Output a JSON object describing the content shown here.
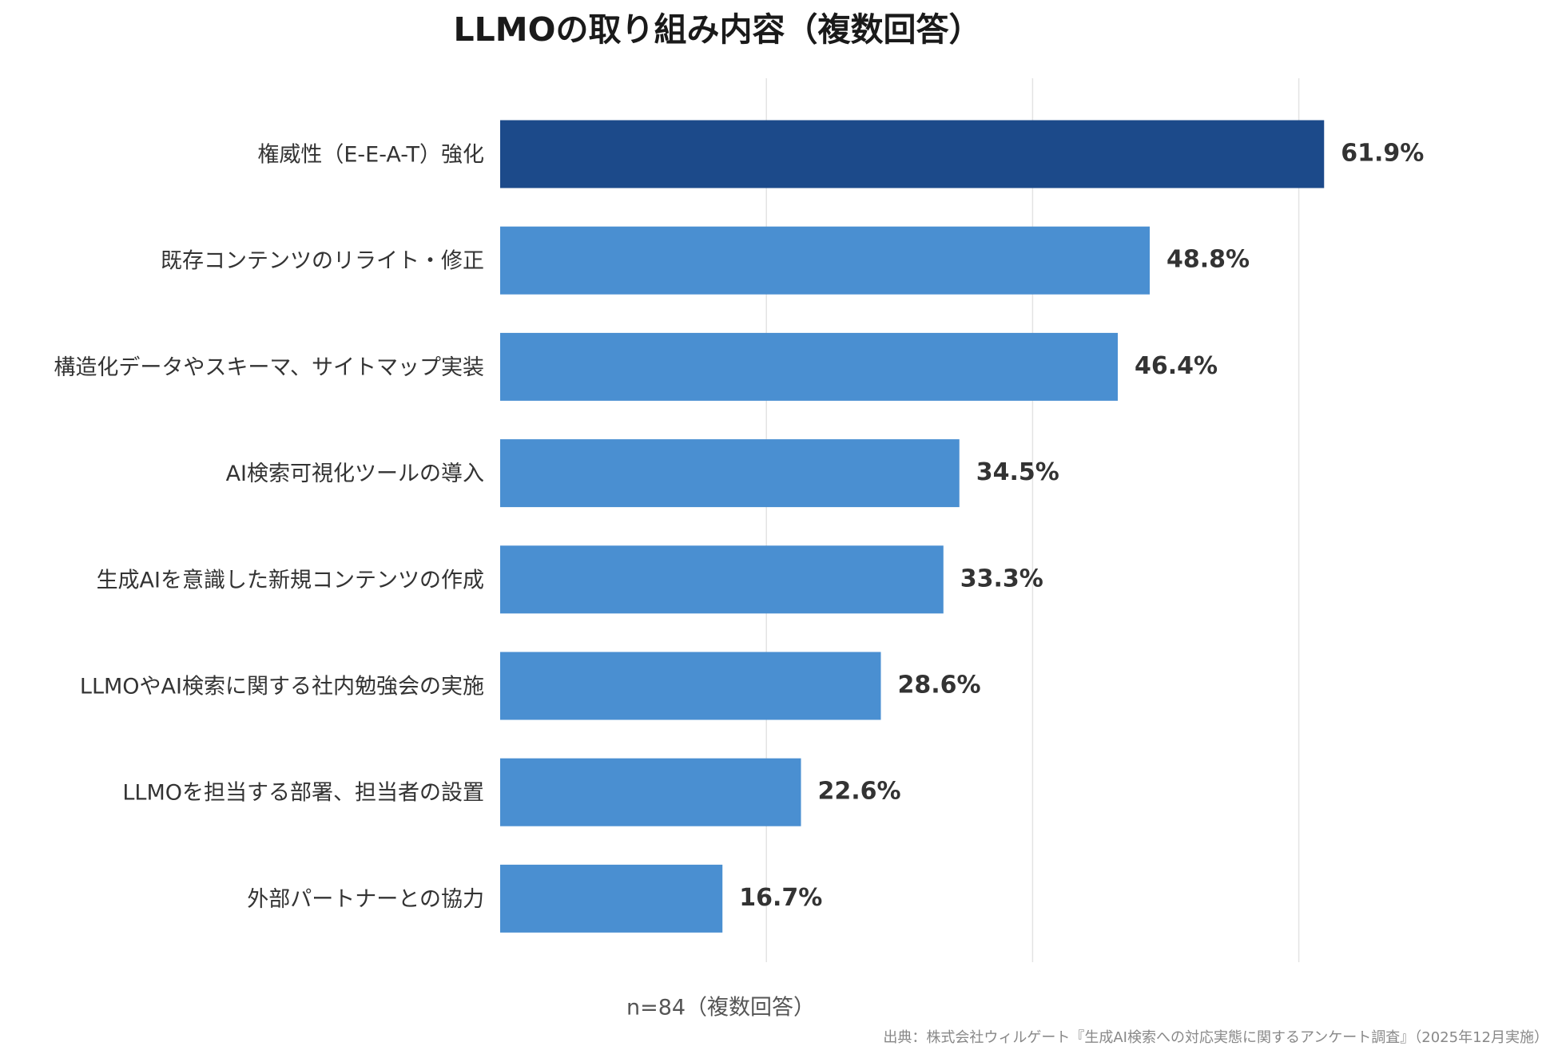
{
  "chart_data": {
    "type": "barh",
    "title": "LLMOの取り組み内容（複数回答）",
    "categories": [
      "権威性（E-E-A-T）強化",
      "既存コンテンツのリライト・修正",
      "構造化データやスキーマ、サイトマップ実装",
      "AI検索可視化ツールの導入",
      "生成AIを意識した新規コンテンツの作成",
      "LLMOやAI検索に関する社内勉強会の実施",
      "LLMOを担当する部署、担当者の設置",
      "外部パートナーとの協力"
    ],
    "values": [
      61.9,
      48.8,
      46.4,
      34.5,
      33.3,
      28.6,
      22.6,
      16.7
    ],
    "value_labels": [
      "61.9%",
      "48.8%",
      "46.4%",
      "34.5%",
      "33.3%",
      "28.6%",
      "22.6%",
      "16.7%"
    ],
    "colors": [
      "#1c4a8a",
      "#4a8fd1",
      "#4a8fd1",
      "#4a8fd1",
      "#4a8fd1",
      "#4a8fd1",
      "#4a8fd1",
      "#4a8fd1"
    ],
    "xlim": [
      0,
      70
    ],
    "xticks": [
      20,
      40,
      60
    ],
    "grid": true,
    "xlabel": "n=84（複数回答）",
    "source": "出典：株式会社ウィルゲート『生成AI検索への対応実態に関するアンケート調査』（2025年12月実施）"
  }
}
